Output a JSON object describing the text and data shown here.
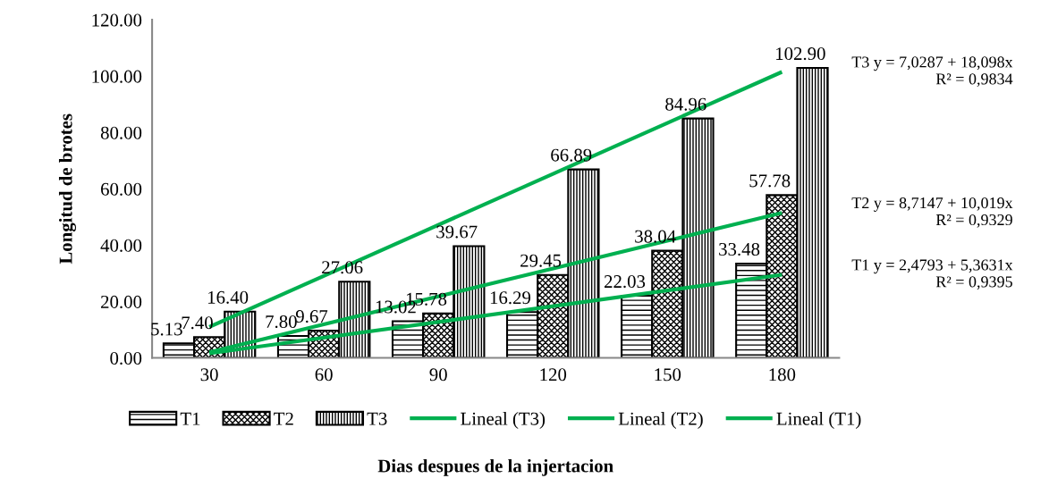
{
  "chart_data": {
    "type": "bar",
    "xlabel": "Dias despues de la injertacion",
    "ylabel": "Longitud de brotes",
    "categories": [
      "30",
      "60",
      "90",
      "120",
      "150",
      "180"
    ],
    "series": [
      {
        "name": "T1",
        "color": "#000000",
        "values": [
          5.13,
          7.8,
          13.02,
          16.29,
          22.03,
          33.48
        ],
        "value_labels": [
          "5.13",
          "7.80",
          "13.02",
          "16.29",
          "22.03",
          "33.48"
        ]
      },
      {
        "name": "T2",
        "color": "#000000",
        "values": [
          7.4,
          9.67,
          15.78,
          29.45,
          38.04,
          57.78
        ],
        "value_labels": [
          "7.40",
          "9.67",
          "15.78",
          "29.45",
          "38.04",
          "57.78"
        ]
      },
      {
        "name": "T3",
        "color": "#000000",
        "values": [
          16.4,
          27.06,
          39.67,
          66.89,
          84.96,
          102.9
        ],
        "value_labels": [
          "16.40",
          "27.06",
          "39.67",
          "66.89",
          "84.96",
          "102.90"
        ]
      },
      {
        "name": "Lineal (T3)",
        "type": "line",
        "color": "#00b050",
        "x": [
          "30",
          "180"
        ],
        "values": [
          11,
          101.5
        ]
      },
      {
        "name": "Lineal (T2)",
        "type": "line",
        "color": "#00b050",
        "x": [
          "30",
          "180"
        ],
        "values": [
          2,
          51.5
        ]
      },
      {
        "name": "Lineal (T1)",
        "type": "line",
        "color": "#00b050",
        "x": [
          "30",
          "180"
        ],
        "values": [
          1.6,
          29.5
        ]
      }
    ],
    "ylim": [
      0,
      120
    ],
    "yticks": [
      {
        "value": 0,
        "label": "0.00"
      },
      {
        "value": 20,
        "label": "20.00"
      },
      {
        "value": 40,
        "label": "40.00"
      },
      {
        "value": 60,
        "label": "60.00"
      },
      {
        "value": 80,
        "label": "80.00"
      },
      {
        "value": 100,
        "label": "100.00"
      },
      {
        "value": 120,
        "label": "120.00"
      }
    ],
    "annotations": [
      "T3 y = 7,0287 + 18,098x\nR² = 0,9834",
      "T2 y = 8,7147 + 10,019x\nR² = 0,9329",
      "T1 y = 2,4793 + 5,3631x\nR² = 0,9395"
    ],
    "legend": "bottom",
    "grid": false
  }
}
